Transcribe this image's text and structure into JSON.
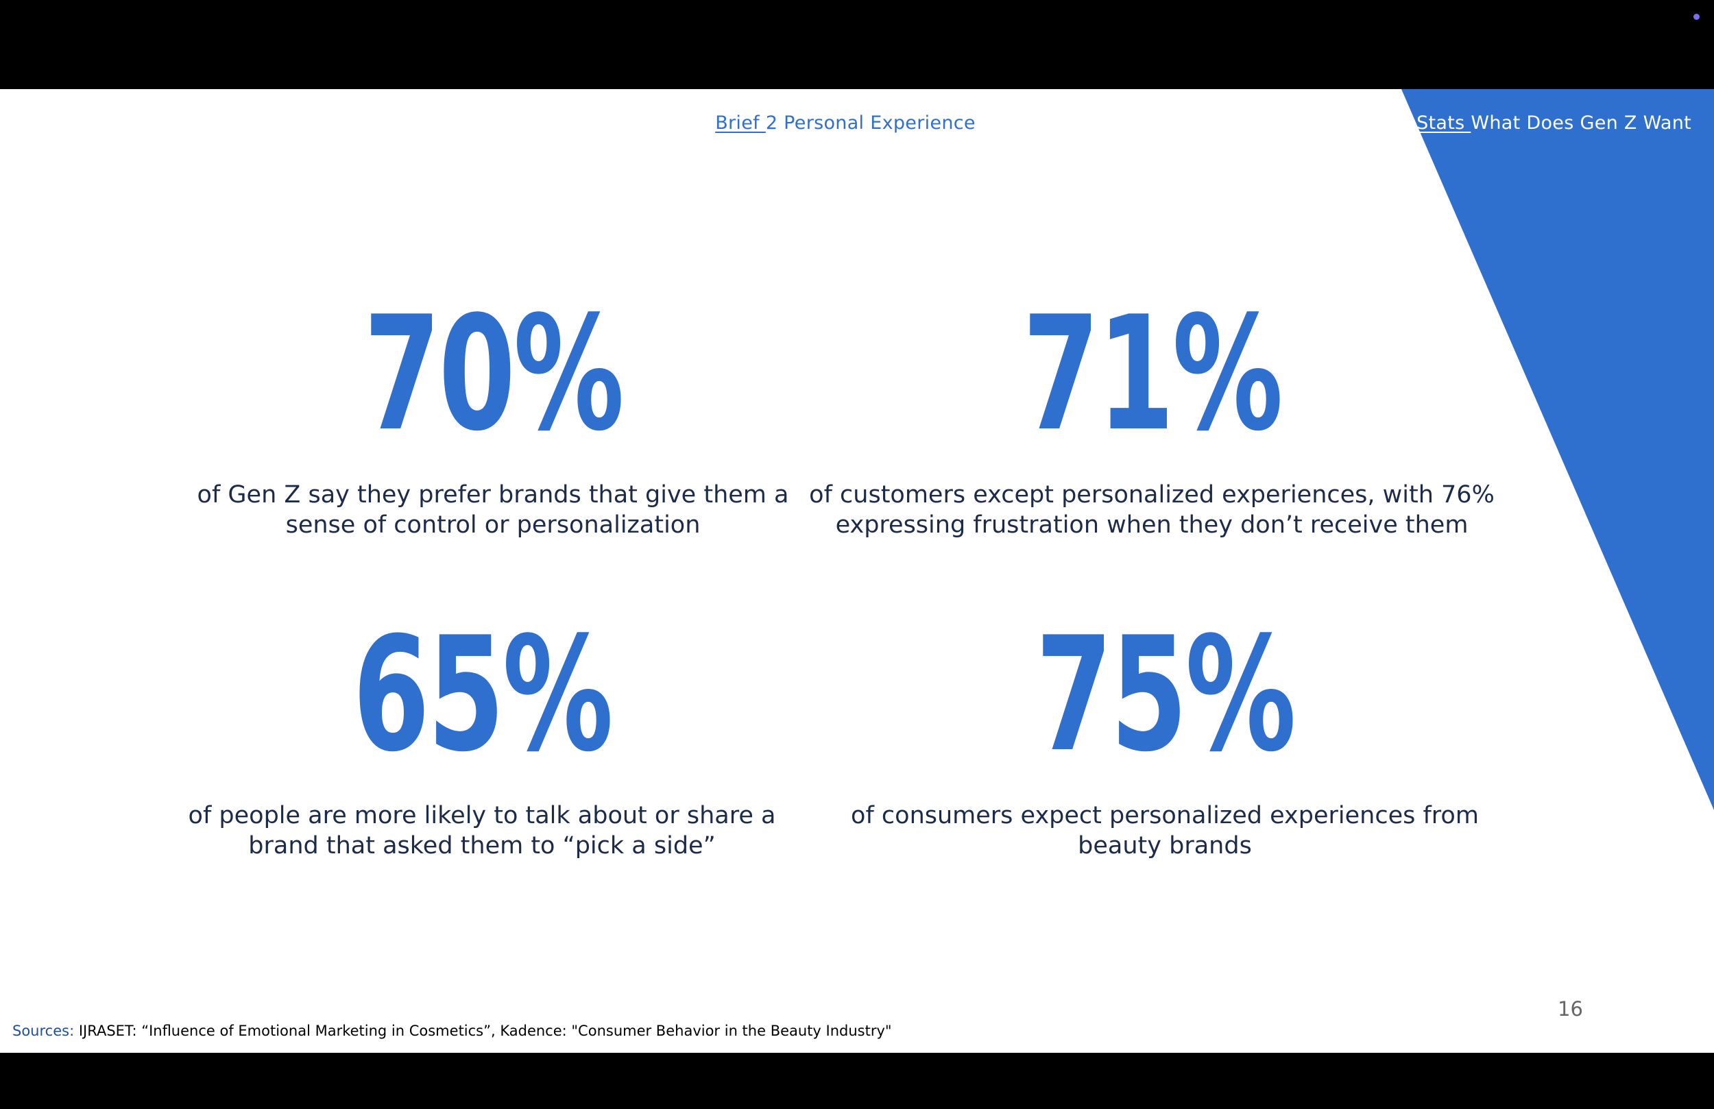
{
  "header": {
    "left_link": "Brief ",
    "left_text": "2 Personal Experience",
    "right_link": "Stats ",
    "right_text": "What Does Gen Z Want"
  },
  "stats": [
    {
      "value": "70%",
      "caption_line1": "of Gen Z say they prefer brands that give them a",
      "caption_line2": "sense of control or personalization"
    },
    {
      "value": "71%",
      "caption_line1": "of customers except personalized experiences, with 76%",
      "caption_line2": "expressing frustration when they don’t receive them"
    },
    {
      "value": "65%",
      "caption_line1": "of people are more likely to talk about or share a",
      "caption_line2": "brand that asked them to “pick a side”"
    },
    {
      "value": "75%",
      "caption_line1": "of consumers expect personalized experiences from",
      "caption_line2": "beauty brands"
    }
  ],
  "page_number": "16",
  "sources": {
    "label": "Sources:",
    "text": " IJRASET: “Influence of Emotional Marketing in Cosmetics”, Kadence: \"Consumer Behavior in the Beauty Industry\""
  },
  "colors": {
    "accent_blue": "#2f6fcd",
    "text_dark": "#1c2b4a",
    "background": "#ffffff",
    "frame": "#000000"
  }
}
